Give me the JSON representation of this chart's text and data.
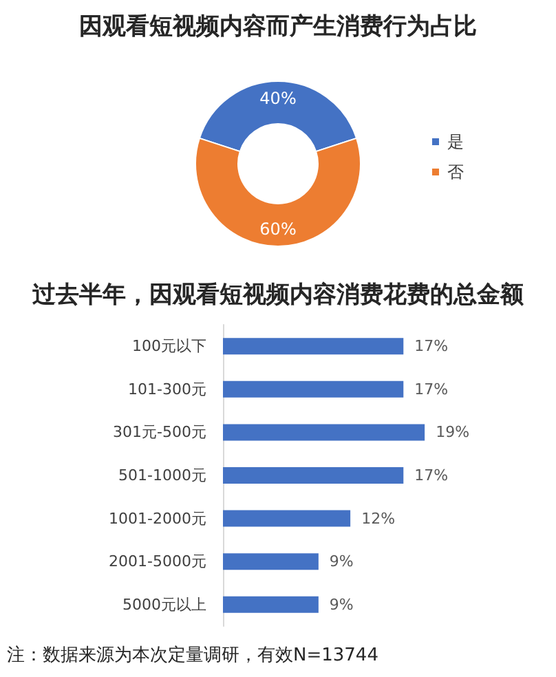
{
  "chart_data": [
    {
      "type": "donut",
      "title": "因观看短视频内容而产生消费行为占比",
      "categories": [
        "是",
        "否"
      ],
      "values": [
        40,
        60
      ],
      "colors": [
        "#4472c4",
        "#ed7d31"
      ],
      "value_labels": [
        "40%",
        "60%"
      ],
      "legend": "right"
    },
    {
      "type": "bar",
      "orientation": "horizontal",
      "title": "过去半年，因观看短视频内容消费花费的总金额",
      "categories": [
        "100元以下",
        "101-300元",
        "301元-500元",
        "501-1000元",
        "1001-2000元",
        "2001-5000元",
        "5000元以上"
      ],
      "values": [
        17,
        17,
        19,
        17,
        12,
        9,
        9
      ],
      "color": "#4472c4",
      "value_labels": [
        "17%",
        "17%",
        "19%",
        "17%",
        "12%",
        "9%",
        "9%"
      ],
      "tick_labels": "y",
      "annotations": [
        "注：数据来源为本次定量调研，有效N=13744"
      ]
    }
  ]
}
